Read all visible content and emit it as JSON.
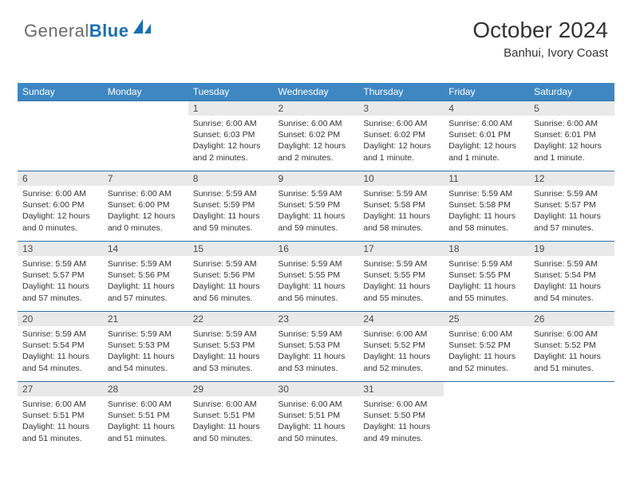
{
  "logo": {
    "general": "General",
    "blue": "Blue"
  },
  "header": {
    "title": "October 2024",
    "location": "Banhui, Ivory Coast"
  },
  "colors": {
    "accent": "#3e87c3",
    "border": "#2d6fa5",
    "daynum_bg": "#e9e9e9",
    "text": "#333333",
    "logo_blue": "#1a6fb0",
    "logo_grey": "#6a6a6a"
  },
  "dayNames": [
    "Sunday",
    "Monday",
    "Tuesday",
    "Wednesday",
    "Thursday",
    "Friday",
    "Saturday"
  ],
  "weeks": [
    [
      {
        "n": "",
        "t": ""
      },
      {
        "n": "",
        "t": ""
      },
      {
        "n": "1",
        "t": "Sunrise: 6:00 AM\nSunset: 6:03 PM\nDaylight: 12 hours and 2 minutes."
      },
      {
        "n": "2",
        "t": "Sunrise: 6:00 AM\nSunset: 6:02 PM\nDaylight: 12 hours and 2 minutes."
      },
      {
        "n": "3",
        "t": "Sunrise: 6:00 AM\nSunset: 6:02 PM\nDaylight: 12 hours and 1 minute."
      },
      {
        "n": "4",
        "t": "Sunrise: 6:00 AM\nSunset: 6:01 PM\nDaylight: 12 hours and 1 minute."
      },
      {
        "n": "5",
        "t": "Sunrise: 6:00 AM\nSunset: 6:01 PM\nDaylight: 12 hours and 1 minute."
      }
    ],
    [
      {
        "n": "6",
        "t": "Sunrise: 6:00 AM\nSunset: 6:00 PM\nDaylight: 12 hours and 0 minutes."
      },
      {
        "n": "7",
        "t": "Sunrise: 6:00 AM\nSunset: 6:00 PM\nDaylight: 12 hours and 0 minutes."
      },
      {
        "n": "8",
        "t": "Sunrise: 5:59 AM\nSunset: 5:59 PM\nDaylight: 11 hours and 59 minutes."
      },
      {
        "n": "9",
        "t": "Sunrise: 5:59 AM\nSunset: 5:59 PM\nDaylight: 11 hours and 59 minutes."
      },
      {
        "n": "10",
        "t": "Sunrise: 5:59 AM\nSunset: 5:58 PM\nDaylight: 11 hours and 58 minutes."
      },
      {
        "n": "11",
        "t": "Sunrise: 5:59 AM\nSunset: 5:58 PM\nDaylight: 11 hours and 58 minutes."
      },
      {
        "n": "12",
        "t": "Sunrise: 5:59 AM\nSunset: 5:57 PM\nDaylight: 11 hours and 57 minutes."
      }
    ],
    [
      {
        "n": "13",
        "t": "Sunrise: 5:59 AM\nSunset: 5:57 PM\nDaylight: 11 hours and 57 minutes."
      },
      {
        "n": "14",
        "t": "Sunrise: 5:59 AM\nSunset: 5:56 PM\nDaylight: 11 hours and 57 minutes."
      },
      {
        "n": "15",
        "t": "Sunrise: 5:59 AM\nSunset: 5:56 PM\nDaylight: 11 hours and 56 minutes."
      },
      {
        "n": "16",
        "t": "Sunrise: 5:59 AM\nSunset: 5:55 PM\nDaylight: 11 hours and 56 minutes."
      },
      {
        "n": "17",
        "t": "Sunrise: 5:59 AM\nSunset: 5:55 PM\nDaylight: 11 hours and 55 minutes."
      },
      {
        "n": "18",
        "t": "Sunrise: 5:59 AM\nSunset: 5:55 PM\nDaylight: 11 hours and 55 minutes."
      },
      {
        "n": "19",
        "t": "Sunrise: 5:59 AM\nSunset: 5:54 PM\nDaylight: 11 hours and 54 minutes."
      }
    ],
    [
      {
        "n": "20",
        "t": "Sunrise: 5:59 AM\nSunset: 5:54 PM\nDaylight: 11 hours and 54 minutes."
      },
      {
        "n": "21",
        "t": "Sunrise: 5:59 AM\nSunset: 5:53 PM\nDaylight: 11 hours and 54 minutes."
      },
      {
        "n": "22",
        "t": "Sunrise: 5:59 AM\nSunset: 5:53 PM\nDaylight: 11 hours and 53 minutes."
      },
      {
        "n": "23",
        "t": "Sunrise: 5:59 AM\nSunset: 5:53 PM\nDaylight: 11 hours and 53 minutes."
      },
      {
        "n": "24",
        "t": "Sunrise: 6:00 AM\nSunset: 5:52 PM\nDaylight: 11 hours and 52 minutes."
      },
      {
        "n": "25",
        "t": "Sunrise: 6:00 AM\nSunset: 5:52 PM\nDaylight: 11 hours and 52 minutes."
      },
      {
        "n": "26",
        "t": "Sunrise: 6:00 AM\nSunset: 5:52 PM\nDaylight: 11 hours and 51 minutes."
      }
    ],
    [
      {
        "n": "27",
        "t": "Sunrise: 6:00 AM\nSunset: 5:51 PM\nDaylight: 11 hours and 51 minutes."
      },
      {
        "n": "28",
        "t": "Sunrise: 6:00 AM\nSunset: 5:51 PM\nDaylight: 11 hours and 51 minutes."
      },
      {
        "n": "29",
        "t": "Sunrise: 6:00 AM\nSunset: 5:51 PM\nDaylight: 11 hours and 50 minutes."
      },
      {
        "n": "30",
        "t": "Sunrise: 6:00 AM\nSunset: 5:51 PM\nDaylight: 11 hours and 50 minutes."
      },
      {
        "n": "31",
        "t": "Sunrise: 6:00 AM\nSunset: 5:50 PM\nDaylight: 11 hours and 49 minutes."
      },
      {
        "n": "",
        "t": ""
      },
      {
        "n": "",
        "t": ""
      }
    ]
  ]
}
